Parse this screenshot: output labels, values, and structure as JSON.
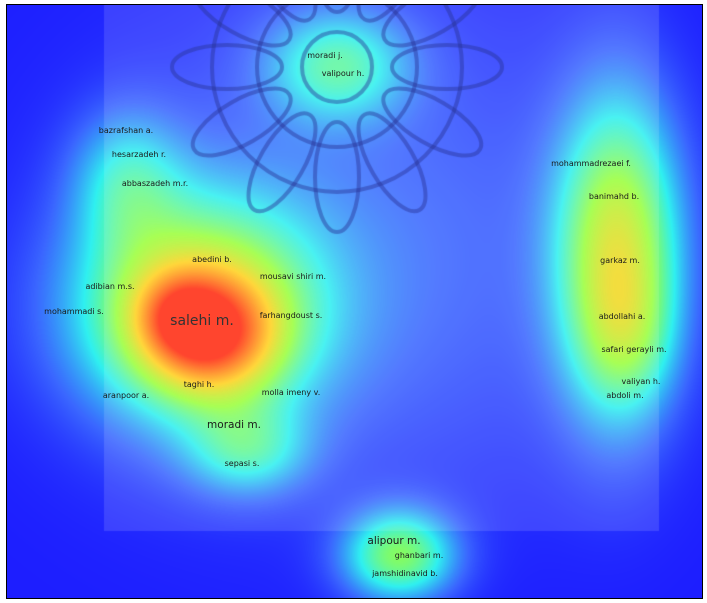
{
  "colors": {
    "background": "#1c1cff",
    "cold": "#3a66ff",
    "cool": "#2ff0f0",
    "mid": "#9bff3c",
    "warm": "#ffd21e",
    "hot": "#ff2a0f"
  },
  "authors": [
    {
      "id": "moradi-j",
      "label": "moradi j."
    },
    {
      "id": "valipour-h",
      "label": "valipour h."
    },
    {
      "id": "bazrafshan-a",
      "label": "bazrafshan a."
    },
    {
      "id": "hesarzadeh-r",
      "label": "hesarzadeh r."
    },
    {
      "id": "abbaszadeh-mr",
      "label": "abbaszadeh m.r."
    },
    {
      "id": "abedini-b",
      "label": "abedini b."
    },
    {
      "id": "adibian-ms",
      "label": "adibian m.s."
    },
    {
      "id": "mousavi-shiri-m",
      "label": "mousavi shiri m."
    },
    {
      "id": "mohammadi-s",
      "label": "mohammadi s."
    },
    {
      "id": "salehi-m",
      "label": "salehi m."
    },
    {
      "id": "farhangdoust-s",
      "label": "farhangdoust s."
    },
    {
      "id": "taghi-h",
      "label": "taghi h."
    },
    {
      "id": "molla-imeny-v",
      "label": "molla imeny v."
    },
    {
      "id": "aranpoor-a",
      "label": "aranpoor a."
    },
    {
      "id": "moradi-m",
      "label": "moradi m."
    },
    {
      "id": "sepasi-s",
      "label": "sepasi s."
    },
    {
      "id": "mohammadrezaei-f",
      "label": "mohammadrezaei f."
    },
    {
      "id": "banimahd-b",
      "label": "banimahd b."
    },
    {
      "id": "garkaz-m",
      "label": "garkaz m."
    },
    {
      "id": "abdollahi-a",
      "label": "abdollahi a."
    },
    {
      "id": "safari-gerayli-m",
      "label": "safari gerayli m."
    },
    {
      "id": "valiyan-h",
      "label": "valiyan h."
    },
    {
      "id": "abdoli-m",
      "label": "abdoli m."
    },
    {
      "id": "alipour-m",
      "label": "alipour m."
    },
    {
      "id": "ghanbari-m",
      "label": "ghanbari m."
    },
    {
      "id": "jamshidinavid-b",
      "label": "jamshidinavid b."
    }
  ]
}
